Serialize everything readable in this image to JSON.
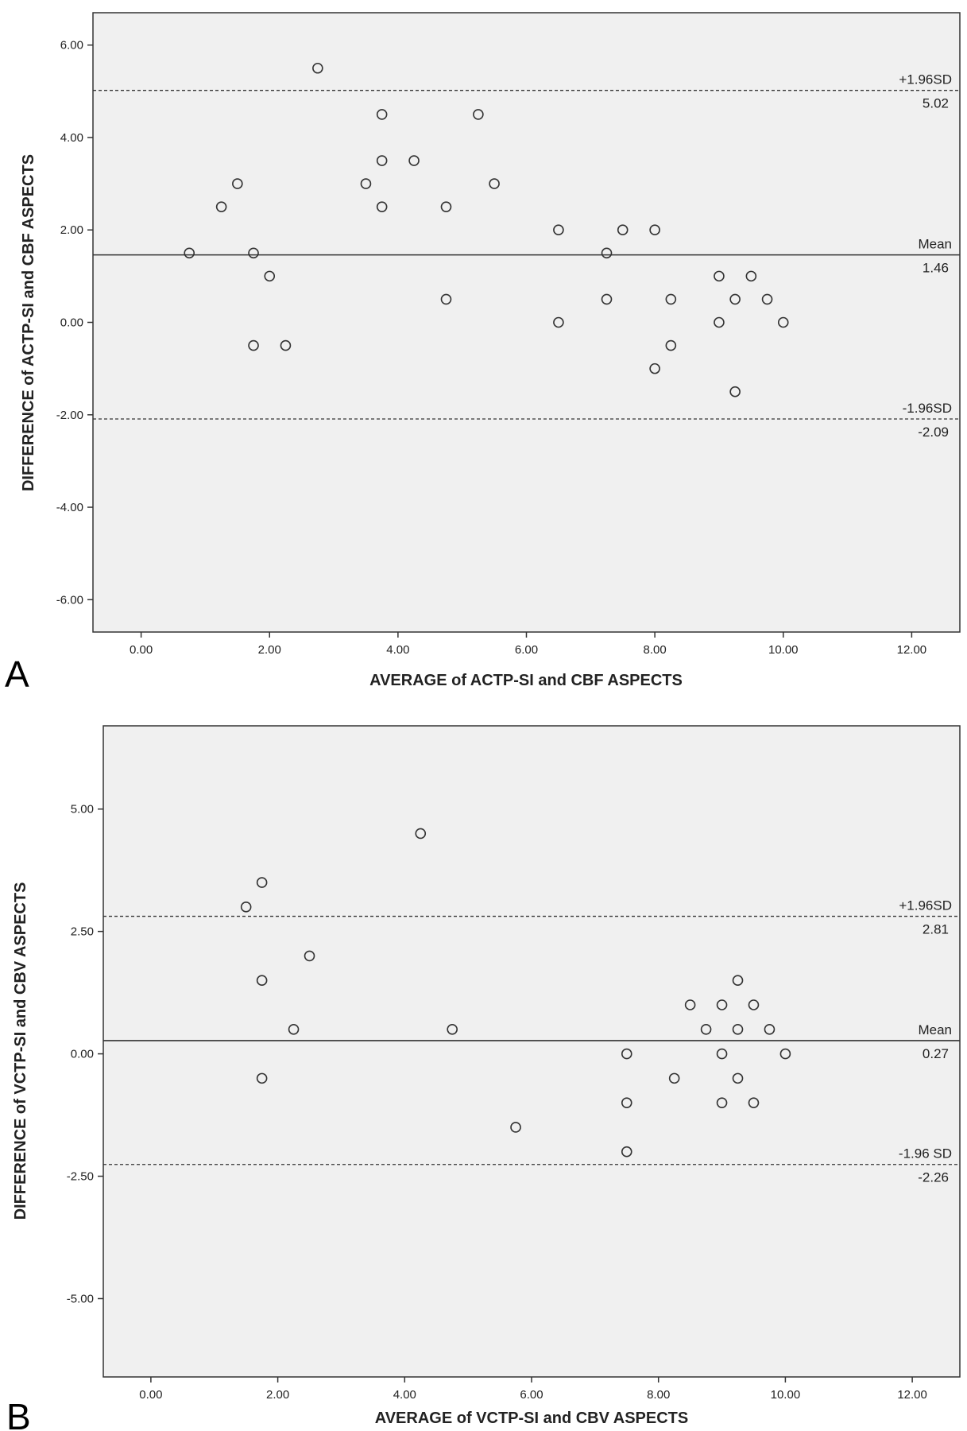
{
  "chart_data": [
    {
      "type": "scatter",
      "panel_label": "A",
      "xlabel": "AVERAGE of ACTP-SI and CBF ASPECTS",
      "ylabel": "DIFFERENCE of ACTP-SI and CBF ASPECTS",
      "xlim": [
        -0.75,
        12.75
      ],
      "ylim": [
        -6.7,
        6.7
      ],
      "xticks": [
        0,
        2,
        4,
        6,
        8,
        10,
        12
      ],
      "xtick_labels": [
        "0.00",
        "2.00",
        "4.00",
        "6.00",
        "8.00",
        "10.00",
        "12.00"
      ],
      "yticks": [
        6,
        4,
        2,
        0,
        -2,
        -4,
        -6
      ],
      "ytick_labels": [
        "6.00",
        "4.00",
        "2.00",
        "0.00",
        "-2.00",
        "-4.00",
        "-6.00"
      ],
      "reference_lines": [
        {
          "label": "+1.96SD",
          "value_label": "5.02",
          "y": 5.02,
          "style": "dashed"
        },
        {
          "label": "Mean",
          "value_label": "1.46",
          "y": 1.46,
          "style": "solid"
        },
        {
          "label": "-1.96SD",
          "value_label": "-2.09",
          "y": -2.09,
          "style": "dashed"
        }
      ],
      "points": [
        {
          "x": 0.75,
          "y": 1.5
        },
        {
          "x": 1.25,
          "y": 2.5
        },
        {
          "x": 1.5,
          "y": 3.0
        },
        {
          "x": 1.75,
          "y": 1.5
        },
        {
          "x": 1.75,
          "y": -0.5
        },
        {
          "x": 2.0,
          "y": 1.0
        },
        {
          "x": 2.25,
          "y": -0.5
        },
        {
          "x": 2.75,
          "y": 5.5
        },
        {
          "x": 3.5,
          "y": 3.0
        },
        {
          "x": 3.75,
          "y": 4.5
        },
        {
          "x": 3.75,
          "y": 3.5
        },
        {
          "x": 3.75,
          "y": 2.5
        },
        {
          "x": 4.25,
          "y": 3.5
        },
        {
          "x": 4.75,
          "y": 2.5
        },
        {
          "x": 4.75,
          "y": 0.5
        },
        {
          "x": 5.25,
          "y": 4.5
        },
        {
          "x": 5.5,
          "y": 3.0
        },
        {
          "x": 6.5,
          "y": 2.0
        },
        {
          "x": 6.5,
          "y": 0.0
        },
        {
          "x": 7.25,
          "y": 1.5
        },
        {
          "x": 7.25,
          "y": 0.5
        },
        {
          "x": 7.5,
          "y": 2.0
        },
        {
          "x": 8.0,
          "y": 2.0
        },
        {
          "x": 8.0,
          "y": -1.0
        },
        {
          "x": 8.25,
          "y": 0.5
        },
        {
          "x": 8.25,
          "y": -0.5
        },
        {
          "x": 9.0,
          "y": 1.0
        },
        {
          "x": 9.0,
          "y": 0.0
        },
        {
          "x": 9.25,
          "y": 0.5
        },
        {
          "x": 9.25,
          "y": -1.5
        },
        {
          "x": 9.5,
          "y": 1.0
        },
        {
          "x": 9.75,
          "y": 0.5
        },
        {
          "x": 10.0,
          "y": 0.0
        }
      ]
    },
    {
      "type": "scatter",
      "panel_label": "B",
      "xlabel": "AVERAGE of VCTP-SI and CBV ASPECTS",
      "ylabel": "DIFFERENCE of VCTP-SI and CBV ASPECTS",
      "xlim": [
        -0.75,
        12.75
      ],
      "ylim": [
        -6.6,
        6.7
      ],
      "xticks": [
        0,
        2,
        4,
        6,
        8,
        10,
        12
      ],
      "xtick_labels": [
        "0.00",
        "2.00",
        "4.00",
        "6.00",
        "8.00",
        "10.00",
        "12.00"
      ],
      "yticks": [
        5,
        2.5,
        0,
        -2.5,
        -5
      ],
      "ytick_labels": [
        "5.00",
        "2.50",
        "0.00",
        "-2.50",
        "-5.00"
      ],
      "reference_lines": [
        {
          "label": "+1.96SD",
          "value_label": "2.81",
          "y": 2.81,
          "style": "dashed"
        },
        {
          "label": "Mean",
          "value_label": "0.27",
          "y": 0.27,
          "style": "solid"
        },
        {
          "label": "-1.96 SD",
          "value_label": "-2.26",
          "y": -2.26,
          "style": "dashed"
        }
      ],
      "points": [
        {
          "x": 1.5,
          "y": 3.0
        },
        {
          "x": 1.75,
          "y": 3.5
        },
        {
          "x": 1.75,
          "y": 1.5
        },
        {
          "x": 1.75,
          "y": -0.5
        },
        {
          "x": 2.25,
          "y": 0.5
        },
        {
          "x": 2.5,
          "y": 2.0
        },
        {
          "x": 4.25,
          "y": 4.5
        },
        {
          "x": 4.75,
          "y": 0.5
        },
        {
          "x": 5.75,
          "y": -1.5
        },
        {
          "x": 7.5,
          "y": 0.0
        },
        {
          "x": 7.5,
          "y": -1.0
        },
        {
          "x": 7.5,
          "y": -2.0
        },
        {
          "x": 8.25,
          "y": -0.5
        },
        {
          "x": 8.5,
          "y": 1.0
        },
        {
          "x": 8.75,
          "y": 0.5
        },
        {
          "x": 9.0,
          "y": 1.0
        },
        {
          "x": 9.0,
          "y": 0.0
        },
        {
          "x": 9.0,
          "y": -1.0
        },
        {
          "x": 9.25,
          "y": 1.5
        },
        {
          "x": 9.25,
          "y": 0.5
        },
        {
          "x": 9.25,
          "y": -0.5
        },
        {
          "x": 9.5,
          "y": 1.0
        },
        {
          "x": 9.5,
          "y": -1.0
        },
        {
          "x": 9.75,
          "y": 0.5
        },
        {
          "x": 10.0,
          "y": 0.0
        }
      ]
    }
  ]
}
